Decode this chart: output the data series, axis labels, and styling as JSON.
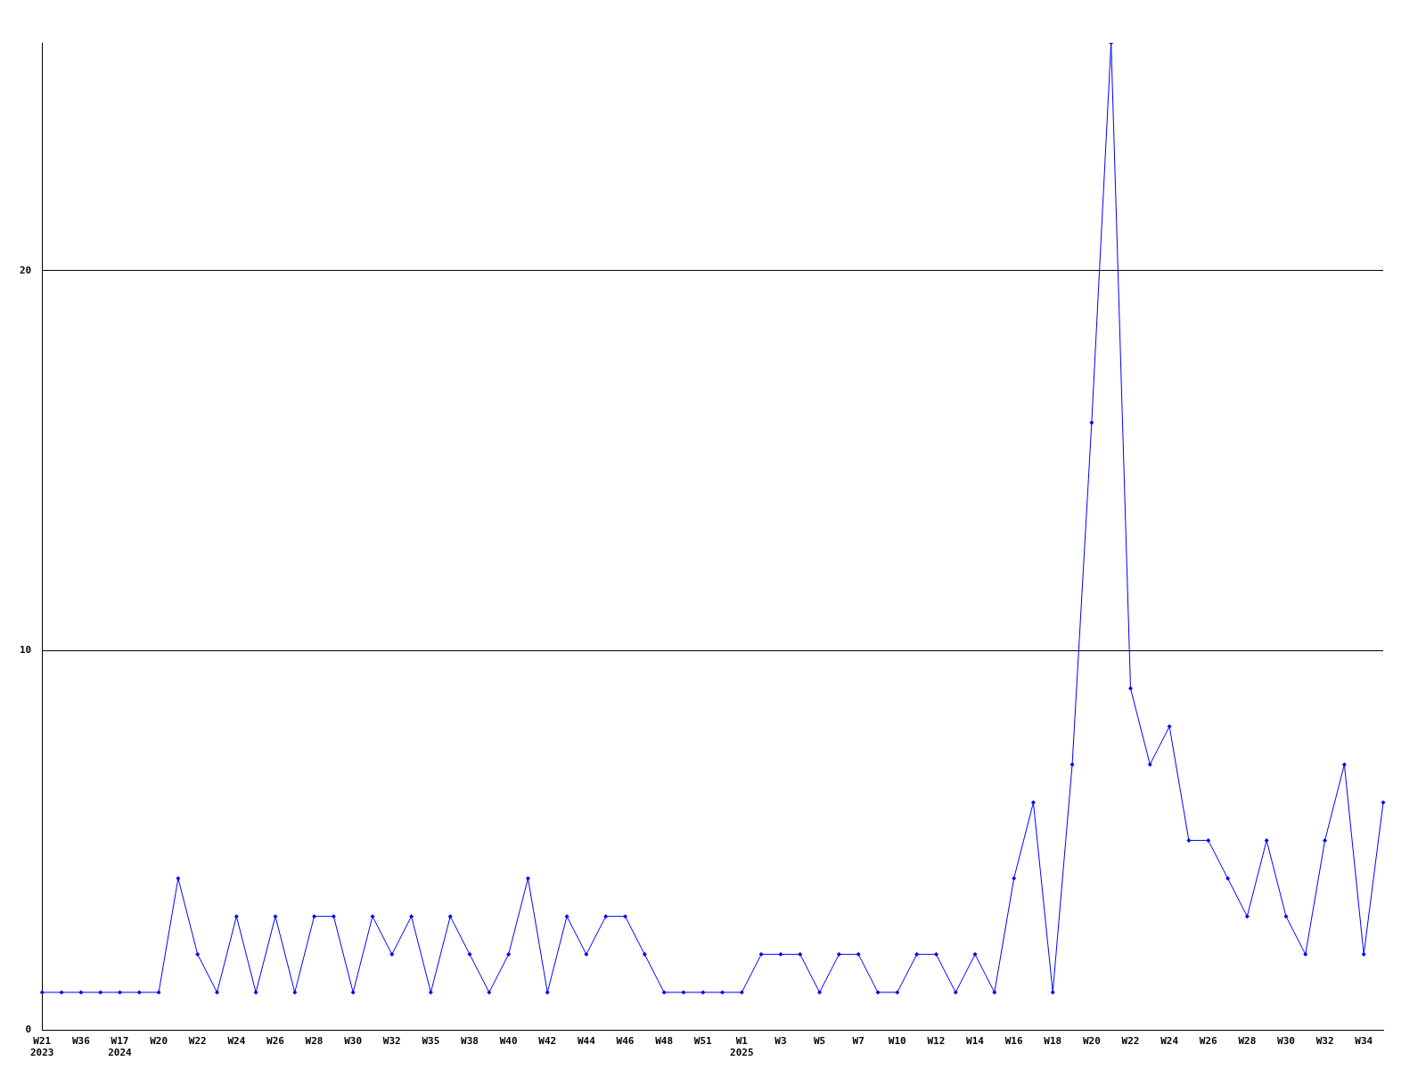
{
  "chart_data": {
    "type": "line",
    "categories": [
      "W21\n2023",
      null,
      "W36",
      null,
      "W17\n2024",
      null,
      "W20",
      null,
      "W22",
      null,
      "W24",
      null,
      "W26",
      null,
      "W28",
      null,
      "W30",
      null,
      "W32",
      null,
      "W35",
      null,
      "W38",
      null,
      "W40",
      null,
      "W42",
      null,
      "W44",
      null,
      "W46",
      null,
      "W48",
      null,
      "W51",
      null,
      "W1\n2025",
      null,
      "W3",
      null,
      "W5",
      null,
      "W7",
      null,
      "W10",
      null,
      "W12",
      null,
      "W14",
      null,
      "W16",
      null,
      "W18",
      null,
      "W20",
      null,
      "W22",
      null,
      "W24",
      null,
      "W26",
      null,
      "W28",
      null,
      "W30",
      null,
      "W32",
      null,
      "W34",
      null
    ],
    "series": [
      {
        "color": "#0000ff",
        "values": [
          1,
          1,
          1,
          1,
          1,
          1,
          1,
          4,
          2,
          1,
          3,
          1,
          3,
          1,
          3,
          3,
          1,
          3,
          2,
          3,
          1,
          3,
          2,
          1,
          2,
          4,
          1,
          3,
          2,
          3,
          3,
          2,
          1,
          1,
          1,
          1,
          1,
          2,
          2,
          2,
          1,
          2,
          2,
          1,
          1,
          2,
          2,
          1,
          2,
          1,
          4,
          6,
          1,
          7,
          16,
          26,
          9,
          7,
          8,
          5,
          5,
          4,
          3,
          5,
          3,
          2,
          5,
          7,
          2,
          6
        ]
      }
    ],
    "ylim": [
      0,
      26
    ],
    "yticks": [
      0,
      10,
      20
    ],
    "grid": "y",
    "legend": false,
    "marker": "diamond",
    "line_style": "solid"
  }
}
